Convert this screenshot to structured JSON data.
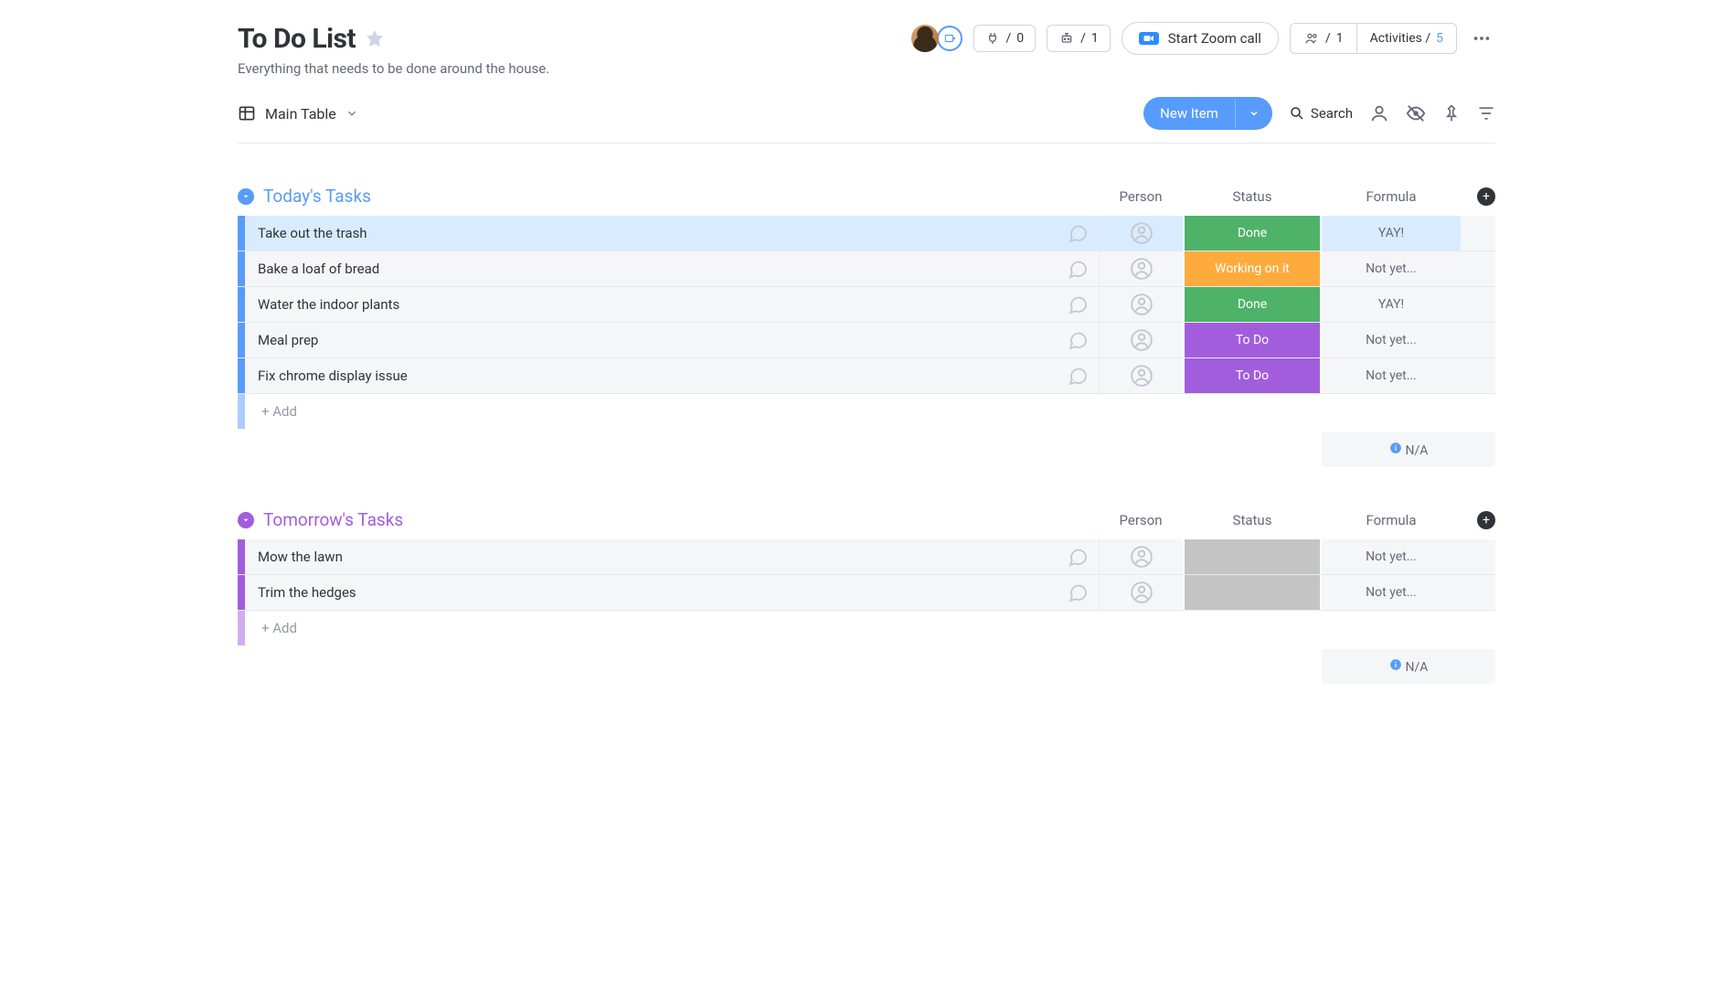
{
  "board": {
    "title": "To Do List",
    "subtitle": "Everything that needs to be done around the house."
  },
  "header": {
    "integrations_count": "0",
    "automations_count": "1",
    "zoom_label": "Start Zoom call",
    "members_count": "1",
    "activities_label": "Activities / ",
    "activities_count": "5"
  },
  "toolbar": {
    "view_label": "Main Table",
    "new_item_label": "New Item",
    "search_label": "Search"
  },
  "columns": {
    "person": "Person",
    "status": "Status",
    "formula": "Formula"
  },
  "status_colors": {
    "Done": "#4eb268",
    "Working on it": "#fdab3d",
    "To Do": "#a25ddc",
    "blank": "#c4c4c4"
  },
  "groups": [
    {
      "id": "today",
      "title": "Today's Tasks",
      "color": "#579bfc",
      "stripe": "#579bfc",
      "rows": [
        {
          "name": "Take out the trash",
          "status": "Done",
          "formula": "YAY!",
          "selected": true
        },
        {
          "name": "Bake a loaf of bread",
          "status": "Working on it",
          "formula": "Not yet..."
        },
        {
          "name": "Water the indoor plants",
          "status": "Done",
          "formula": "YAY!"
        },
        {
          "name": "Meal prep",
          "status": "To Do",
          "formula": "Not yet..."
        },
        {
          "name": "Fix chrome display issue",
          "status": "To Do",
          "formula": "Not yet..."
        }
      ],
      "add_label": "+ Add",
      "summary": "N/A"
    },
    {
      "id": "tomorrow",
      "title": "Tomorrow's Tasks",
      "color": "#a25ddc",
      "stripe": "#a25ddc",
      "rows": [
        {
          "name": "Mow the lawn",
          "status": "",
          "formula": "Not yet..."
        },
        {
          "name": "Trim the hedges",
          "status": "",
          "formula": "Not yet..."
        }
      ],
      "add_label": "+ Add",
      "summary": "N/A"
    }
  ]
}
